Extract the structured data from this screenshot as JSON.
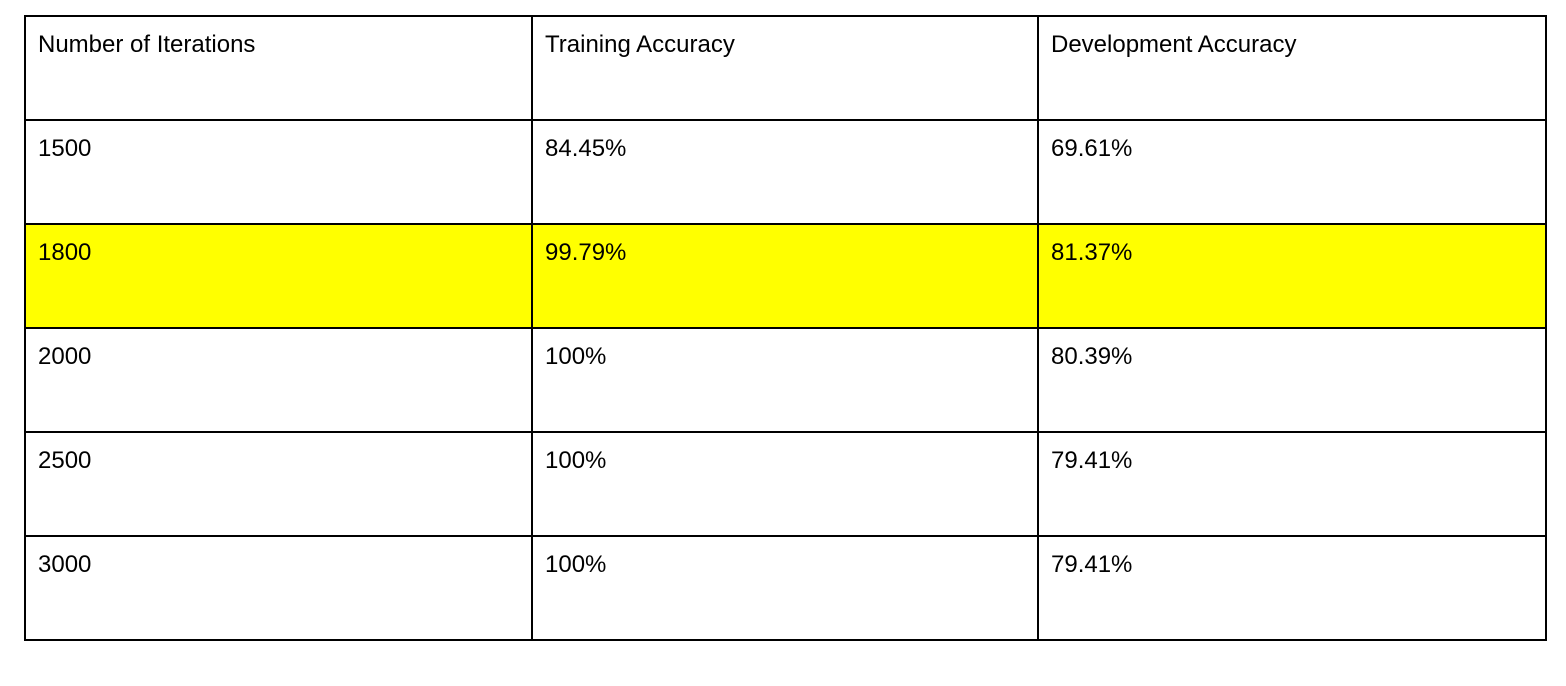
{
  "table": {
    "headers": [
      "Number of Iterations",
      "Training Accuracy",
      "Development Accuracy"
    ],
    "rows": [
      [
        "1500",
        "84.45%",
        "69.61%"
      ],
      [
        "1800",
        "99.79%",
        "81.37%"
      ],
      [
        "2000",
        "100%",
        "80.39%"
      ],
      [
        "2500",
        "100%",
        "79.41%"
      ],
      [
        "3000",
        "100%",
        "79.41%"
      ]
    ],
    "highlighted_row_index": 1,
    "highlight_color": "#ffff00",
    "border_color": "#000000"
  }
}
